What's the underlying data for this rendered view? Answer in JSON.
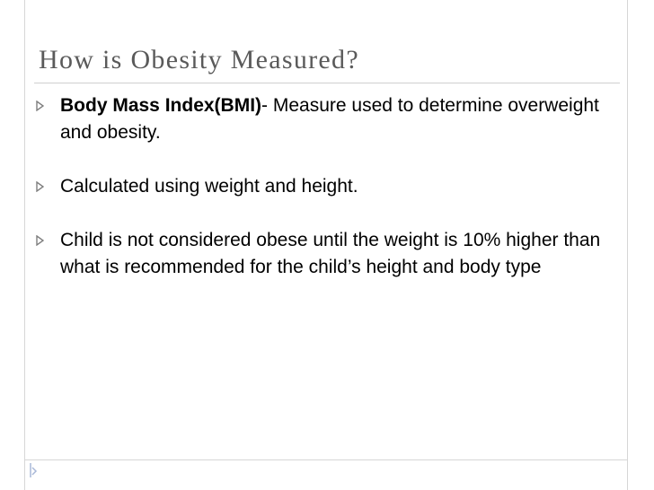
{
  "slide": {
    "title": "How is Obesity Measured?",
    "bullets": [
      {
        "bold": "Body Mass Index(BMI)",
        "text": "- Measure used to determine overweight and obesity."
      },
      {
        "bold": "",
        "text": "Calculated using weight and height."
      },
      {
        "bold": "",
        "text": "Child is not considered obese until the weight is 10% higher than what is recommended for the child’s height and body type"
      }
    ],
    "bullet_icon": "triangle-right-icon",
    "colors": {
      "title": "#5a5a5a",
      "text": "#000000",
      "bullet": "#7f7f7f",
      "rule": "#cfcfcf"
    }
  }
}
